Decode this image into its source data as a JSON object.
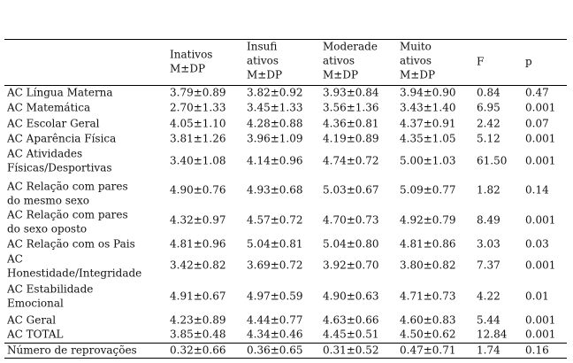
{
  "table": {
    "header": [
      [
        "Inativos",
        "M±DP"
      ],
      [
        "Insufi",
        "ativos",
        "M±DP"
      ],
      [
        "Moderade",
        "ativos",
        "M±DP"
      ],
      [
        "Muito",
        "ativos",
        "M±DP"
      ],
      [
        "F"
      ],
      [
        "p"
      ]
    ],
    "rows": [
      {
        "label": [
          "AC Língua Materna"
        ],
        "cells": [
          "3.79±0.89",
          "3.82±0.92",
          "3.93±0.84",
          "3.94±0.90",
          "0.84",
          "0.47"
        ]
      },
      {
        "label": [
          "AC Matemática"
        ],
        "cells": [
          "2.70±1.33",
          "3.45±1.33",
          "3.56±1.36",
          "3.43±1.40",
          "6.95",
          "0.001"
        ]
      },
      {
        "label": [
          "AC Escolar Geral"
        ],
        "cells": [
          "4.05±1.10",
          "4.28±0.88",
          "4.36±0.81",
          "4.37±0.91",
          "2.42",
          "0.07"
        ]
      },
      {
        "label": [
          "AC Aparência Física"
        ],
        "cells": [
          "3.81±1.26",
          "3.96±1.09",
          "4.19±0.89",
          "4.35±1.05",
          "5.12",
          "0.001"
        ]
      },
      {
        "label": [
          "AC Atividades",
          "Físicas/Desportivas"
        ],
        "cells": [
          "3.40±1.08",
          "4.14±0.96",
          "4.74±0.72",
          "5.00±1.03",
          "61.50",
          "0.001"
        ]
      },
      {
        "label": [
          "AC Relação com pares",
          "do mesmo sexo"
        ],
        "cells": [
          "4.90±0.76",
          "4.93±0.68",
          "5.03±0.67",
          "5.09±0.77",
          "1.82",
          "0.14"
        ]
      },
      {
        "label": [
          "AC Relação com pares",
          "do sexo oposto"
        ],
        "cells": [
          "4.32±0.97",
          "4.57±0.72",
          "4.70±0.73",
          "4.92±0.79",
          "8.49",
          "0.001"
        ]
      },
      {
        "label": [
          "AC Relação com os Pais"
        ],
        "cells": [
          "4.81±0.96",
          "5.04±0.81",
          "5.04±0.80",
          "4.81±0.86",
          "3.03",
          "0.03"
        ]
      },
      {
        "label": [
          "AC",
          "Honestidade/Integridade"
        ],
        "cells": [
          "3.42±0.82",
          "3.69±0.72",
          "3.92±0.70",
          "3.80±0.82",
          "7.37",
          "0.001"
        ]
      },
      {
        "label": [
          "AC Estabilidade",
          "Emocional"
        ],
        "cells": [
          "4.91±0.67",
          "4.97±0.59",
          "4.90±0.63",
          "4.71±0.73",
          "4.22",
          "0.01"
        ]
      },
      {
        "label": [
          "AC Geral"
        ],
        "cells": [
          "4.23±0.89",
          "4.44±0.77",
          "4.63±0.66",
          "4.60±0.83",
          "5.44",
          "0.001"
        ]
      },
      {
        "label": [
          "AC TOTAL"
        ],
        "cells": [
          "3.85±0.48",
          "4.34±0.46",
          "4.45±0.51",
          "4.50±0.62",
          "12.84",
          "0.001"
        ]
      },
      {
        "label": [
          "Número de reprovações"
        ],
        "cells": [
          "0.32±0.66",
          "0.36±0.65",
          "0.31±0.52",
          "0.47±0.71",
          "1.74",
          "0.16"
        ]
      }
    ]
  }
}
